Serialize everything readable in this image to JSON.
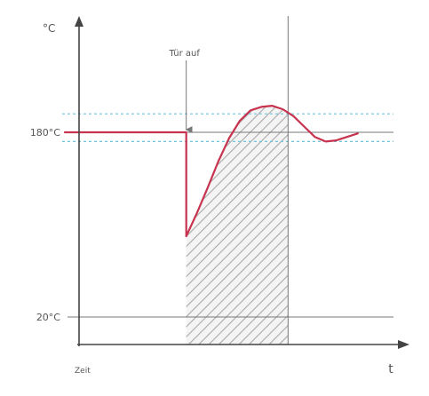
{
  "chart_data": {
    "type": "line",
    "title": "",
    "y_unit": "°C",
    "x_unit": "t",
    "x_origin_label": "Zeit",
    "y_ticks": [
      {
        "value": 180,
        "label": "180°C"
      },
      {
        "value": 20,
        "label": "20°C"
      }
    ],
    "tolerance_band": [
      172,
      196
    ],
    "annotation": {
      "x": 3.0,
      "label": "Tür auf"
    },
    "recovery_end_x": 5.85,
    "series": [
      {
        "color": "#c8334f",
        "points": [
          [
            0.0,
            180
          ],
          [
            3.0,
            180
          ],
          [
            3.0,
            90
          ],
          [
            3.3,
            110
          ],
          [
            3.6,
            132
          ],
          [
            3.9,
            155
          ],
          [
            4.2,
            175
          ],
          [
            4.5,
            190
          ],
          [
            4.8,
            199
          ],
          [
            5.1,
            202
          ],
          [
            5.4,
            203
          ],
          [
            5.7,
            200
          ],
          [
            6.0,
            194
          ],
          [
            6.3,
            185
          ],
          [
            6.6,
            176
          ],
          [
            6.9,
            172
          ],
          [
            7.2,
            173
          ],
          [
            7.5,
            176
          ],
          [
            7.8,
            179
          ]
        ]
      }
    ],
    "xlim": [
      0,
      8.8
    ],
    "ylim": [
      0,
      270
    ],
    "grid": false,
    "legend": "none"
  }
}
